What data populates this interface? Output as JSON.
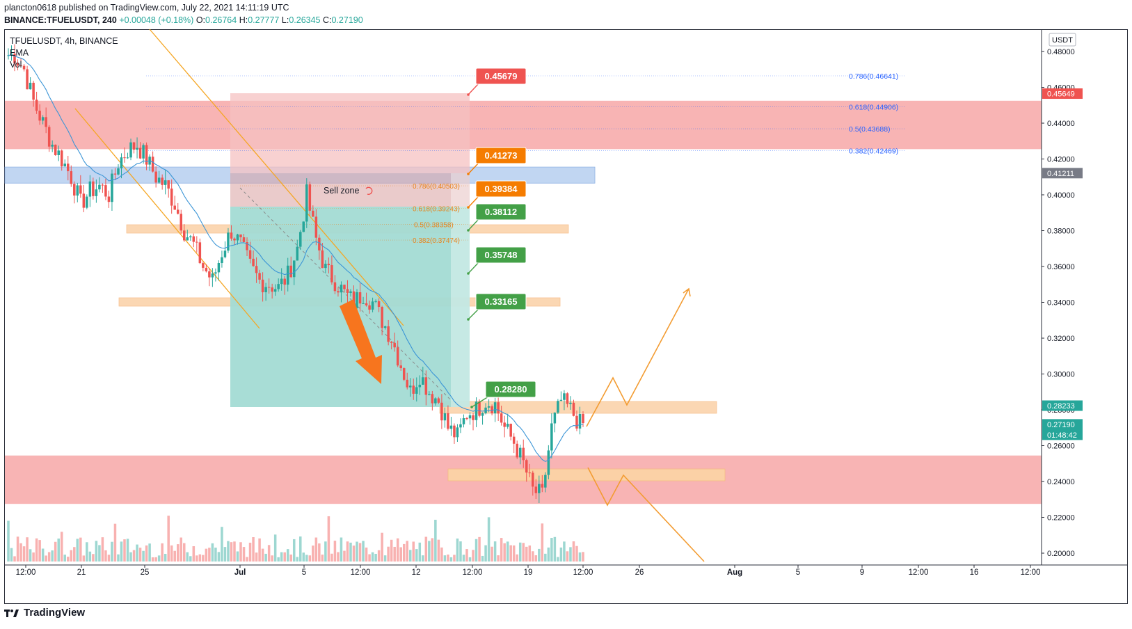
{
  "header": {
    "publisher_line": "plancton0618 published on TradingView.com, July 22, 2021 14:11:19 UTC",
    "symbol": "BINANCE:TFUELUSDT, 240",
    "change": "+0.00048 (+0.18%)",
    "o_label": "O:",
    "o_value": "0.26764",
    "h_label": "H:",
    "h_value": "0.27777",
    "l_label": "L:",
    "l_value": "0.26345",
    "c_label": "C:",
    "c_value": "0.27190"
  },
  "legend": {
    "title": "TFUELUSDT, 4h, BINANCE",
    "ema": "EMA",
    "vol": "Vol"
  },
  "footer": {
    "brand": "TradingView"
  },
  "colors": {
    "up": "#26a69a",
    "down": "#ef5350",
    "resistance_zone": "#f7a7a7",
    "blue_zone": "#b7cff0",
    "orange_zone": "#fbd1a6",
    "profit_box": "#a3dbd4",
    "loss_box": "#f5c2c2",
    "projection": "#f39c32",
    "ema": "#3b95d6",
    "fib_blue": "#2962ff",
    "fib_orange": "#e8851e"
  },
  "chart_data": {
    "type": "candlestick",
    "currency": "USDT",
    "ylim": [
      0.195,
      0.49
    ],
    "y_ticks": [
      "0.48000",
      "0.46000",
      "0.44000",
      "0.42000",
      "0.40000",
      "0.38000",
      "0.36000",
      "0.34000",
      "0.32000",
      "0.30000",
      "0.28000",
      "0.26000",
      "0.24000",
      "0.22000",
      "0.20000"
    ],
    "x_ticks": [
      "12:00",
      "21",
      "25",
      "Jul",
      "5",
      "12:00",
      "12",
      "12:00",
      "19",
      "12:00",
      "26",
      "Aug",
      "5",
      "9",
      "12:00",
      "16",
      "12:00"
    ],
    "price_tags": [
      {
        "label": "0.45649",
        "price": 0.45649,
        "color": "#ef5350"
      },
      {
        "label": "0.41211",
        "price": 0.41211,
        "color": "#787b86"
      },
      {
        "label": "0.28233",
        "price": 0.28233,
        "color": "#26a69a"
      },
      {
        "label": "0.27190",
        "price": 0.2719,
        "color": "#26a69a",
        "sub": "01:48:42"
      }
    ],
    "targets": [
      {
        "label": "0.45679",
        "color": "#ef5350"
      },
      {
        "label": "0.41273",
        "color": "#f57c00"
      },
      {
        "label": "0.39384",
        "color": "#f57c00"
      },
      {
        "label": "0.38112",
        "color": "#43a047"
      },
      {
        "label": "0.35748",
        "color": "#43a047"
      },
      {
        "label": "0.33165",
        "color": "#43a047"
      },
      {
        "label": "0.28280",
        "color": "#43a047"
      }
    ],
    "fib_levels_right": [
      {
        "label": "0.786(0.46641)",
        "price": 0.46641
      },
      {
        "label": "0.618(0.44906)",
        "price": 0.44906
      },
      {
        "label": "0.5(0.43688)",
        "price": 0.43688
      },
      {
        "label": "0.382(0.42469)",
        "price": 0.42469
      }
    ],
    "fib_levels_mid": [
      {
        "label": "0.786(0.40503)",
        "price": 0.40503
      },
      {
        "label": "0.618(0.39243)",
        "price": 0.39243
      },
      {
        "label": "0.5(0.38358)",
        "price": 0.38358
      },
      {
        "label": "0.382(0.37474)",
        "price": 0.37474
      }
    ],
    "annotations": [
      "Sell zone"
    ],
    "zones": [
      {
        "kind": "resistance",
        "from": 0.4255,
        "to": 0.4525
      },
      {
        "kind": "blue",
        "from": 0.4065,
        "to": 0.4155
      },
      {
        "kind": "support",
        "from": 0.2275,
        "to": 0.2545
      }
    ],
    "close_path": [
      0.478,
      0.47,
      0.452,
      0.44,
      0.428,
      0.42,
      0.41,
      0.395,
      0.402,
      0.405,
      0.4,
      0.418,
      0.425,
      0.428,
      0.42,
      0.41,
      0.405,
      0.395,
      0.38,
      0.372,
      0.36,
      0.352,
      0.368,
      0.38,
      0.372,
      0.36,
      0.352,
      0.35,
      0.348,
      0.355,
      0.37,
      0.4,
      0.375,
      0.358,
      0.352,
      0.345,
      0.34,
      0.345,
      0.34,
      0.33,
      0.32,
      0.305,
      0.29,
      0.3,
      0.29,
      0.285,
      0.27,
      0.265,
      0.278,
      0.28,
      0.285,
      0.283,
      0.27,
      0.262,
      0.25,
      0.235,
      0.232,
      0.27,
      0.285,
      0.28,
      0.272,
      0.2719
    ]
  }
}
